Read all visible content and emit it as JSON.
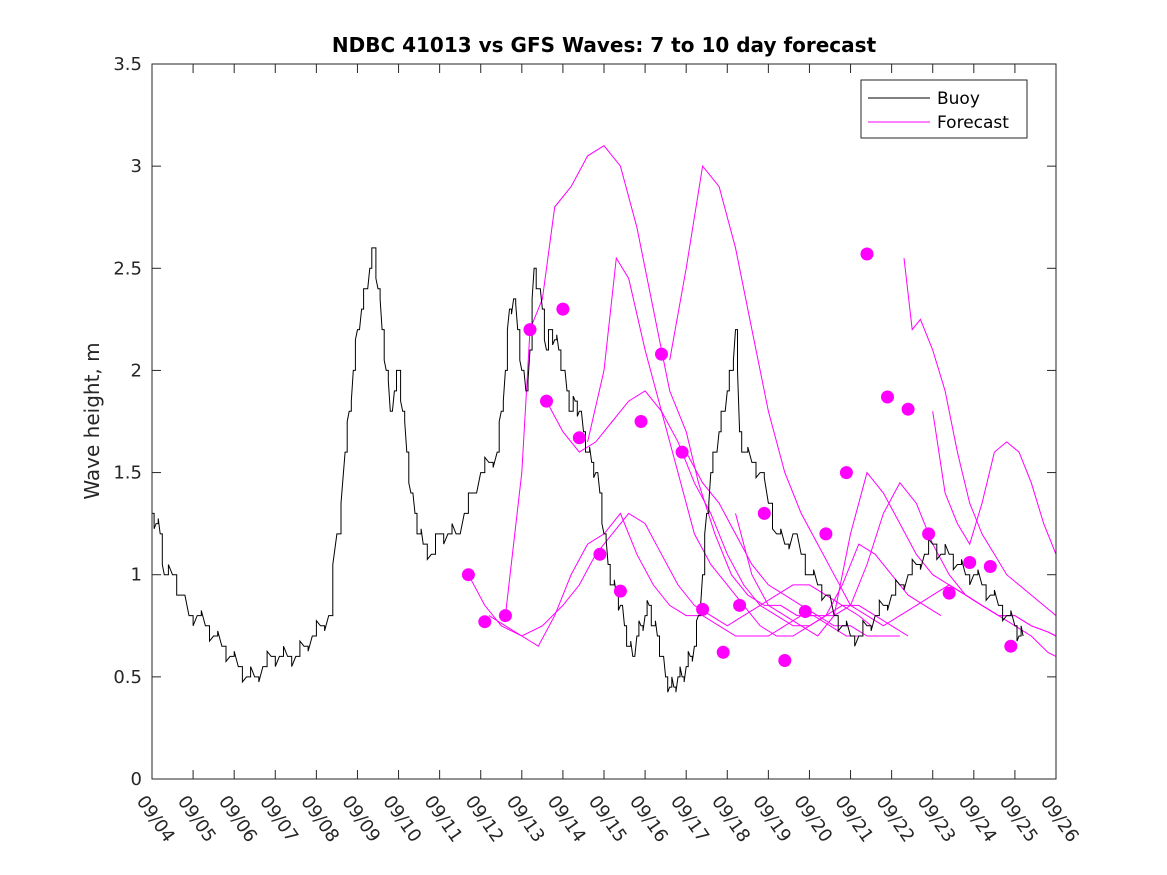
{
  "chart_data": {
    "type": "line",
    "title": "NDBC 41013 vs GFS Waves: 7 to 10 day forecast",
    "ylabel": "Wave height, m",
    "xlabel": "",
    "xlim": [
      0,
      22
    ],
    "ylim": [
      0,
      3.5
    ],
    "grid": false,
    "legend_position": "top-right",
    "x_tick_labels": [
      "09/04",
      "09/05",
      "09/06",
      "09/07",
      "09/08",
      "09/09",
      "09/10",
      "09/11",
      "09/12",
      "09/13",
      "09/14",
      "09/15",
      "09/16",
      "09/17",
      "09/18",
      "09/19",
      "09/20",
      "09/21",
      "09/22",
      "09/23",
      "09/24",
      "09/25",
      "09/26"
    ],
    "y_ticks": [
      0,
      0.5,
      1,
      1.5,
      2,
      2.5,
      3,
      3.5
    ],
    "y_tick_labels": [
      "0",
      "0.5",
      "1",
      "1.5",
      "2",
      "2.5",
      "3",
      "3.5"
    ],
    "colors": {
      "buoy": "#000000",
      "forecast": "#ff00ff"
    },
    "legend": [
      {
        "name": "Buoy",
        "color": "#000000"
      },
      {
        "name": "Forecast",
        "color": "#ff00ff"
      }
    ],
    "buoy": {
      "name": "Buoy",
      "x": [
        0,
        0.1,
        0.2,
        0.3,
        0.5,
        0.7,
        0.9,
        1.1,
        1.3,
        1.5,
        1.7,
        1.9,
        2.1,
        2.3,
        2.5,
        2.7,
        2.9,
        3.1,
        3.3,
        3.5,
        3.7,
        3.9,
        4.1,
        4.3,
        4.5,
        4.7,
        4.8,
        4.9,
        5.0,
        5.1,
        5.2,
        5.3,
        5.4,
        5.5,
        5.6,
        5.7,
        5.8,
        5.9,
        6.0,
        6.1,
        6.2,
        6.3,
        6.4,
        6.5,
        6.6,
        6.8,
        7.0,
        7.2,
        7.4,
        7.6,
        7.8,
        8.0,
        8.2,
        8.4,
        8.5,
        8.6,
        8.7,
        8.8,
        8.9,
        9.0,
        9.1,
        9.2,
        9.3,
        9.4,
        9.5,
        9.6,
        9.7,
        9.8,
        9.9,
        10.0,
        10.1,
        10.2,
        10.3,
        10.4,
        10.5,
        10.6,
        10.7,
        10.8,
        10.9,
        11.0,
        11.1,
        11.2,
        11.3,
        11.4,
        11.5,
        11.6,
        11.7,
        11.8,
        11.9,
        12.0,
        12.1,
        12.2,
        12.3,
        12.4,
        12.5,
        12.6,
        12.7,
        12.8,
        12.9,
        13.0,
        13.1,
        13.2,
        13.3,
        13.4,
        13.5,
        13.6,
        13.7,
        13.8,
        13.9,
        14.0,
        14.1,
        14.2,
        14.3,
        14.4,
        14.6,
        14.8,
        15.0,
        15.2,
        15.4,
        15.6,
        15.8,
        16.0,
        16.2,
        16.4,
        16.6,
        16.8,
        17.0,
        17.2,
        17.4,
        17.6,
        17.8,
        18.0,
        18.2,
        18.4,
        18.6,
        18.8,
        19.0,
        19.2,
        19.4,
        19.6,
        19.8,
        20.0,
        20.2,
        20.4,
        20.6,
        20.8,
        21.0,
        21.1,
        21.2
      ],
      "y": [
        1.3,
        1.25,
        1.2,
        1.0,
        1.0,
        0.9,
        0.8,
        0.8,
        0.75,
        0.7,
        0.65,
        0.6,
        0.55,
        0.5,
        0.5,
        0.55,
        0.6,
        0.6,
        0.6,
        0.6,
        0.65,
        0.7,
        0.75,
        0.8,
        1.2,
        1.6,
        1.8,
        2.0,
        2.2,
        2.3,
        2.4,
        2.5,
        2.6,
        2.4,
        2.2,
        2.0,
        1.8,
        1.9,
        2.0,
        1.8,
        1.6,
        1.4,
        1.3,
        1.2,
        1.15,
        1.1,
        1.2,
        1.2,
        1.2,
        1.3,
        1.4,
        1.5,
        1.55,
        1.6,
        1.8,
        2.0,
        2.3,
        2.35,
        2.2,
        2.0,
        1.9,
        2.1,
        2.5,
        2.4,
        2.3,
        2.1,
        2.2,
        2.15,
        2.1,
        2.0,
        1.9,
        1.8,
        1.85,
        1.8,
        1.7,
        1.6,
        1.55,
        1.5,
        1.4,
        1.2,
        1.05,
        0.95,
        0.9,
        0.85,
        0.75,
        0.65,
        0.6,
        0.7,
        0.75,
        0.8,
        0.85,
        0.75,
        0.7,
        0.6,
        0.5,
        0.45,
        0.45,
        0.5,
        0.5,
        0.55,
        0.6,
        0.65,
        0.8,
        1.0,
        1.3,
        1.5,
        1.6,
        1.7,
        1.8,
        1.9,
        2.0,
        2.2,
        1.7,
        1.6,
        1.55,
        1.5,
        1.35,
        1.2,
        1.15,
        1.2,
        1.1,
        1.0,
        0.95,
        0.9,
        0.8,
        0.75,
        0.7,
        0.7,
        0.75,
        0.8,
        0.85,
        0.9,
        0.95,
        1.0,
        1.05,
        1.1,
        1.15,
        1.1,
        1.1,
        1.05,
        1.0,
        1.0,
        0.95,
        0.9,
        0.85,
        0.8,
        0.75,
        0.7,
        0.7
      ]
    },
    "forecast": {
      "name": "Forecast",
      "series": [
        {
          "x": [
            7.7,
            8.1,
            8.5,
            9.0,
            9.5,
            10.0,
            10.4,
            10.8,
            11.2,
            11.6,
            12.0,
            12.4,
            12.8,
            13.2,
            13.6,
            14.0,
            14.4,
            14.8,
            15.2,
            15.6,
            16.0,
            16.4,
            16.8,
            17.2,
            17.5
          ],
          "y": [
            1.0,
            0.85,
            0.75,
            0.7,
            0.75,
            0.85,
            0.95,
            1.1,
            1.2,
            1.3,
            1.25,
            1.1,
            0.95,
            0.85,
            0.8,
            0.75,
            0.8,
            0.85,
            0.9,
            0.95,
            0.95,
            0.9,
            0.85,
            0.8,
            0.75
          ]
        },
        {
          "x": [
            8.2,
            8.6,
            9.0,
            9.4,
            9.8,
            10.2,
            10.6,
            11.0,
            11.4,
            11.8,
            12.2,
            12.6,
            13.0,
            13.4,
            13.8,
            14.2,
            14.6,
            15.0,
            15.4,
            15.8,
            16.2,
            16.6,
            17.0,
            17.4,
            17.8,
            18.2
          ],
          "y": [
            0.8,
            0.75,
            0.7,
            0.65,
            0.8,
            1.0,
            1.15,
            1.2,
            1.3,
            1.1,
            0.95,
            0.85,
            0.8,
            0.8,
            0.75,
            0.7,
            0.7,
            0.7,
            0.75,
            0.8,
            0.8,
            0.75,
            0.75,
            0.7,
            0.7,
            0.7
          ]
        },
        {
          "x": [
            8.6,
            9.0,
            9.2,
            9.5,
            9.8,
            10.2,
            10.6,
            11.0,
            11.4,
            11.8,
            12.2,
            12.6,
            13.0,
            13.3,
            13.7,
            14.1,
            14.5,
            14.9,
            15.3,
            15.7,
            16.1,
            16.5,
            16.9,
            17.3
          ],
          "y": [
            0.8,
            1.5,
            2.2,
            2.35,
            2.8,
            2.9,
            3.05,
            3.1,
            3.0,
            2.7,
            2.3,
            1.9,
            1.7,
            1.45,
            1.2,
            1.0,
            0.9,
            0.85,
            0.85,
            0.8,
            0.8,
            0.75,
            0.7,
            0.7
          ]
        },
        {
          "x": [
            9.6,
            10.0,
            10.4,
            10.8,
            11.2,
            11.6,
            12.0,
            12.4,
            12.8,
            13.2,
            13.6,
            14.0,
            14.4,
            14.8,
            15.2,
            15.6,
            16.0,
            16.4,
            16.8,
            17.2,
            17.6,
            18.0,
            18.4
          ],
          "y": [
            1.85,
            1.7,
            1.6,
            1.65,
            1.75,
            1.85,
            1.9,
            1.8,
            1.65,
            1.45,
            1.3,
            1.1,
            0.95,
            0.85,
            0.8,
            0.75,
            0.75,
            0.8,
            0.85,
            0.85,
            0.8,
            0.75,
            0.7
          ]
        },
        {
          "x": [
            10.6,
            11.0,
            11.3,
            11.6,
            12.0,
            12.4,
            12.8,
            13.2,
            13.6,
            14.0,
            14.4,
            14.8,
            15.2,
            15.6,
            16.0,
            16.4,
            16.8,
            17.2,
            17.6,
            18.0,
            18.4,
            18.8,
            19.2
          ],
          "y": [
            1.65,
            2.0,
            2.55,
            2.45,
            2.1,
            1.8,
            1.5,
            1.2,
            1.05,
            0.95,
            0.85,
            0.75,
            0.7,
            0.7,
            0.75,
            0.8,
            0.95,
            1.15,
            1.1,
            1.0,
            0.9,
            0.85,
            0.8
          ]
        },
        {
          "x": [
            12.6,
            13.0,
            13.4,
            13.8,
            14.2,
            14.6,
            15.0,
            15.4,
            15.8,
            16.2,
            16.6,
            17.0,
            17.4,
            17.8,
            18.2,
            18.6,
            19.0,
            19.4,
            19.8,
            20.2,
            20.6,
            21.0,
            21.4,
            21.8,
            22.0
          ],
          "y": [
            2.05,
            2.5,
            3.0,
            2.9,
            2.6,
            2.2,
            1.8,
            1.5,
            1.3,
            1.15,
            1.0,
            0.85,
            0.8,
            0.75,
            0.8,
            0.85,
            0.9,
            0.95,
            0.9,
            0.85,
            0.8,
            0.8,
            0.75,
            0.72,
            0.7
          ]
        },
        {
          "x": [
            13.0,
            13.4,
            13.8,
            14.2,
            14.6,
            15.0,
            15.4,
            15.8,
            16.2,
            16.6,
            17.0,
            17.4,
            17.8,
            18.2,
            18.6,
            19.0,
            19.4,
            19.8,
            20.2,
            20.6,
            21.0,
            21.4,
            21.8,
            22.0
          ],
          "y": [
            1.6,
            1.45,
            1.35,
            1.2,
            1.05,
            0.95,
            0.9,
            0.85,
            0.8,
            0.8,
            0.85,
            1.05,
            1.3,
            1.45,
            1.35,
            1.15,
            1.0,
            0.9,
            0.85,
            0.8,
            0.8,
            0.75,
            0.72,
            0.7
          ]
        },
        {
          "x": [
            14.2,
            14.6,
            15.0,
            15.4,
            15.8,
            16.2,
            16.6,
            17.0,
            17.4,
            17.8,
            18.2,
            18.6,
            19.0,
            19.4,
            19.8,
            20.2,
            20.6,
            21.0,
            21.4,
            21.8,
            22.0
          ],
          "y": [
            1.3,
            1.0,
            0.85,
            0.8,
            0.75,
            0.7,
            0.8,
            1.2,
            1.5,
            1.4,
            1.25,
            1.1,
            1.0,
            0.95,
            0.9,
            0.85,
            0.8,
            0.75,
            0.7,
            0.62,
            0.6
          ]
        },
        {
          "x": [
            18.3,
            18.5,
            18.7,
            19.0,
            19.3,
            19.6,
            19.9,
            20.2,
            20.5,
            20.8,
            21.1,
            21.4,
            21.7,
            22.0
          ],
          "y": [
            2.55,
            2.2,
            2.25,
            2.1,
            1.9,
            1.6,
            1.35,
            1.2,
            1.1,
            1.0,
            0.95,
            0.9,
            0.85,
            0.8
          ]
        },
        {
          "x": [
            19.0,
            19.3,
            19.6,
            19.9,
            20.2,
            20.5,
            20.8,
            21.1,
            21.4,
            21.7,
            22.0
          ],
          "y": [
            1.8,
            1.4,
            1.25,
            1.15,
            1.35,
            1.6,
            1.65,
            1.6,
            1.45,
            1.25,
            1.1
          ]
        }
      ],
      "dots": [
        [
          7.7,
          1.0
        ],
        [
          8.1,
          0.77
        ],
        [
          8.6,
          0.8
        ],
        [
          9.2,
          2.2
        ],
        [
          9.6,
          1.85
        ],
        [
          10.0,
          2.3
        ],
        [
          10.4,
          1.67
        ],
        [
          10.9,
          1.1
        ],
        [
          11.4,
          0.92
        ],
        [
          11.9,
          1.75
        ],
        [
          12.4,
          2.08
        ],
        [
          12.9,
          1.6
        ],
        [
          13.4,
          0.83
        ],
        [
          13.9,
          0.62
        ],
        [
          14.3,
          0.85
        ],
        [
          14.9,
          1.3
        ],
        [
          15.4,
          0.58
        ],
        [
          15.9,
          0.82
        ],
        [
          16.4,
          1.2
        ],
        [
          16.9,
          1.5
        ],
        [
          17.4,
          2.57
        ],
        [
          17.9,
          1.87
        ],
        [
          18.4,
          1.81
        ],
        [
          18.9,
          1.2
        ],
        [
          19.4,
          0.91
        ],
        [
          19.9,
          1.06
        ],
        [
          20.4,
          1.04
        ],
        [
          20.9,
          0.65
        ]
      ]
    }
  }
}
